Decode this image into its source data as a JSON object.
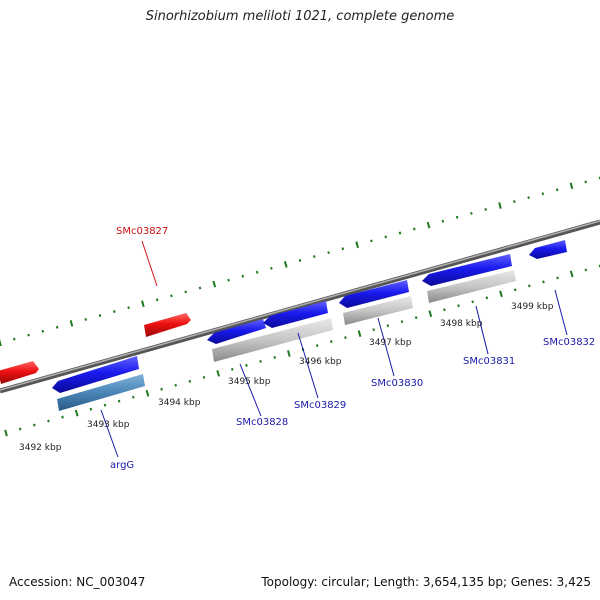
{
  "title": "Sinorhizobium meliloti 1021, complete genome",
  "accession_text": "Accession: NC_003047",
  "summary_text": "Topology: circular; Length: 3,654,135 bp; Genes: 3,425",
  "colors": {
    "forward_gene": "#1a1aee",
    "reverse_gene": "#ee1111",
    "selected_gene": "#4a86b8",
    "feature_gray": "#c6c6c6",
    "backbone": "#7d7d7d",
    "tick": "#1f7a1f",
    "label_blue": "#1a1aa8",
    "label_red": "#cc1111"
  },
  "scale_labels": [
    "3492 kbp",
    "3493 kbp",
    "3494 kbp",
    "3495 kbp",
    "3496 kbp",
    "3497 kbp",
    "3498 kbp",
    "3499 kbp"
  ],
  "gene_labels": {
    "argG": "argG",
    "SMc03827": "SMc03827",
    "SMc03828": "SMc03828",
    "SMc03829": "SMc03829",
    "SMc03830": "SMc03830",
    "SMc03831": "SMc03831",
    "SMc03832": "SMc03832"
  }
}
